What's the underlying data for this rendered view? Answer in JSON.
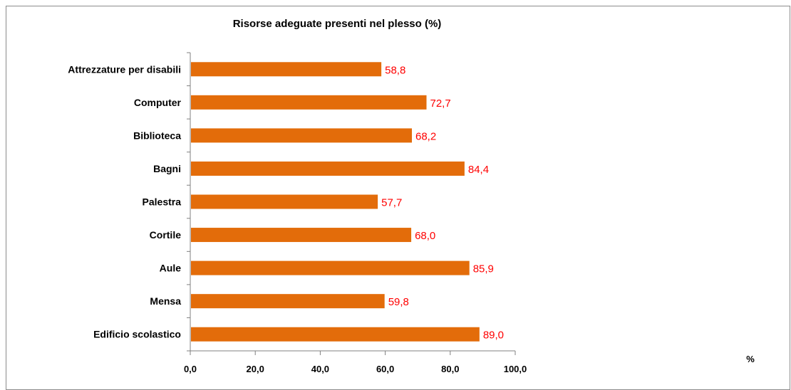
{
  "chart_data": {
    "type": "bar",
    "orientation": "horizontal",
    "title": "Risorse adeguate presenti nel plesso  (%)",
    "xlabel": "%",
    "ylabel": "",
    "categories": [
      "Attrezzature per disabili",
      "Computer",
      "Biblioteca",
      "Bagni",
      "Palestra",
      "Cortile",
      "Aule",
      "Mensa",
      "Edificio scolastico"
    ],
    "values": [
      58.8,
      72.7,
      68.2,
      84.4,
      57.7,
      68.0,
      85.9,
      59.8,
      89.0
    ],
    "value_labels": [
      "58,8",
      "72,7",
      "68,2",
      "84,4",
      "57,7",
      "68,0",
      "85,9",
      "59,8",
      "89,0"
    ],
    "xlim": [
      0,
      100
    ],
    "x_ticks": [
      0,
      20,
      40,
      60,
      80,
      100
    ],
    "x_tick_labels": [
      "0,0",
      "20,0",
      "40,0",
      "60,0",
      "80,0",
      "100,0"
    ],
    "grid": false,
    "legend": "none",
    "colors": {
      "bar": "#E36C0A",
      "data_label": "#FF0000",
      "axis": "#808080"
    }
  }
}
